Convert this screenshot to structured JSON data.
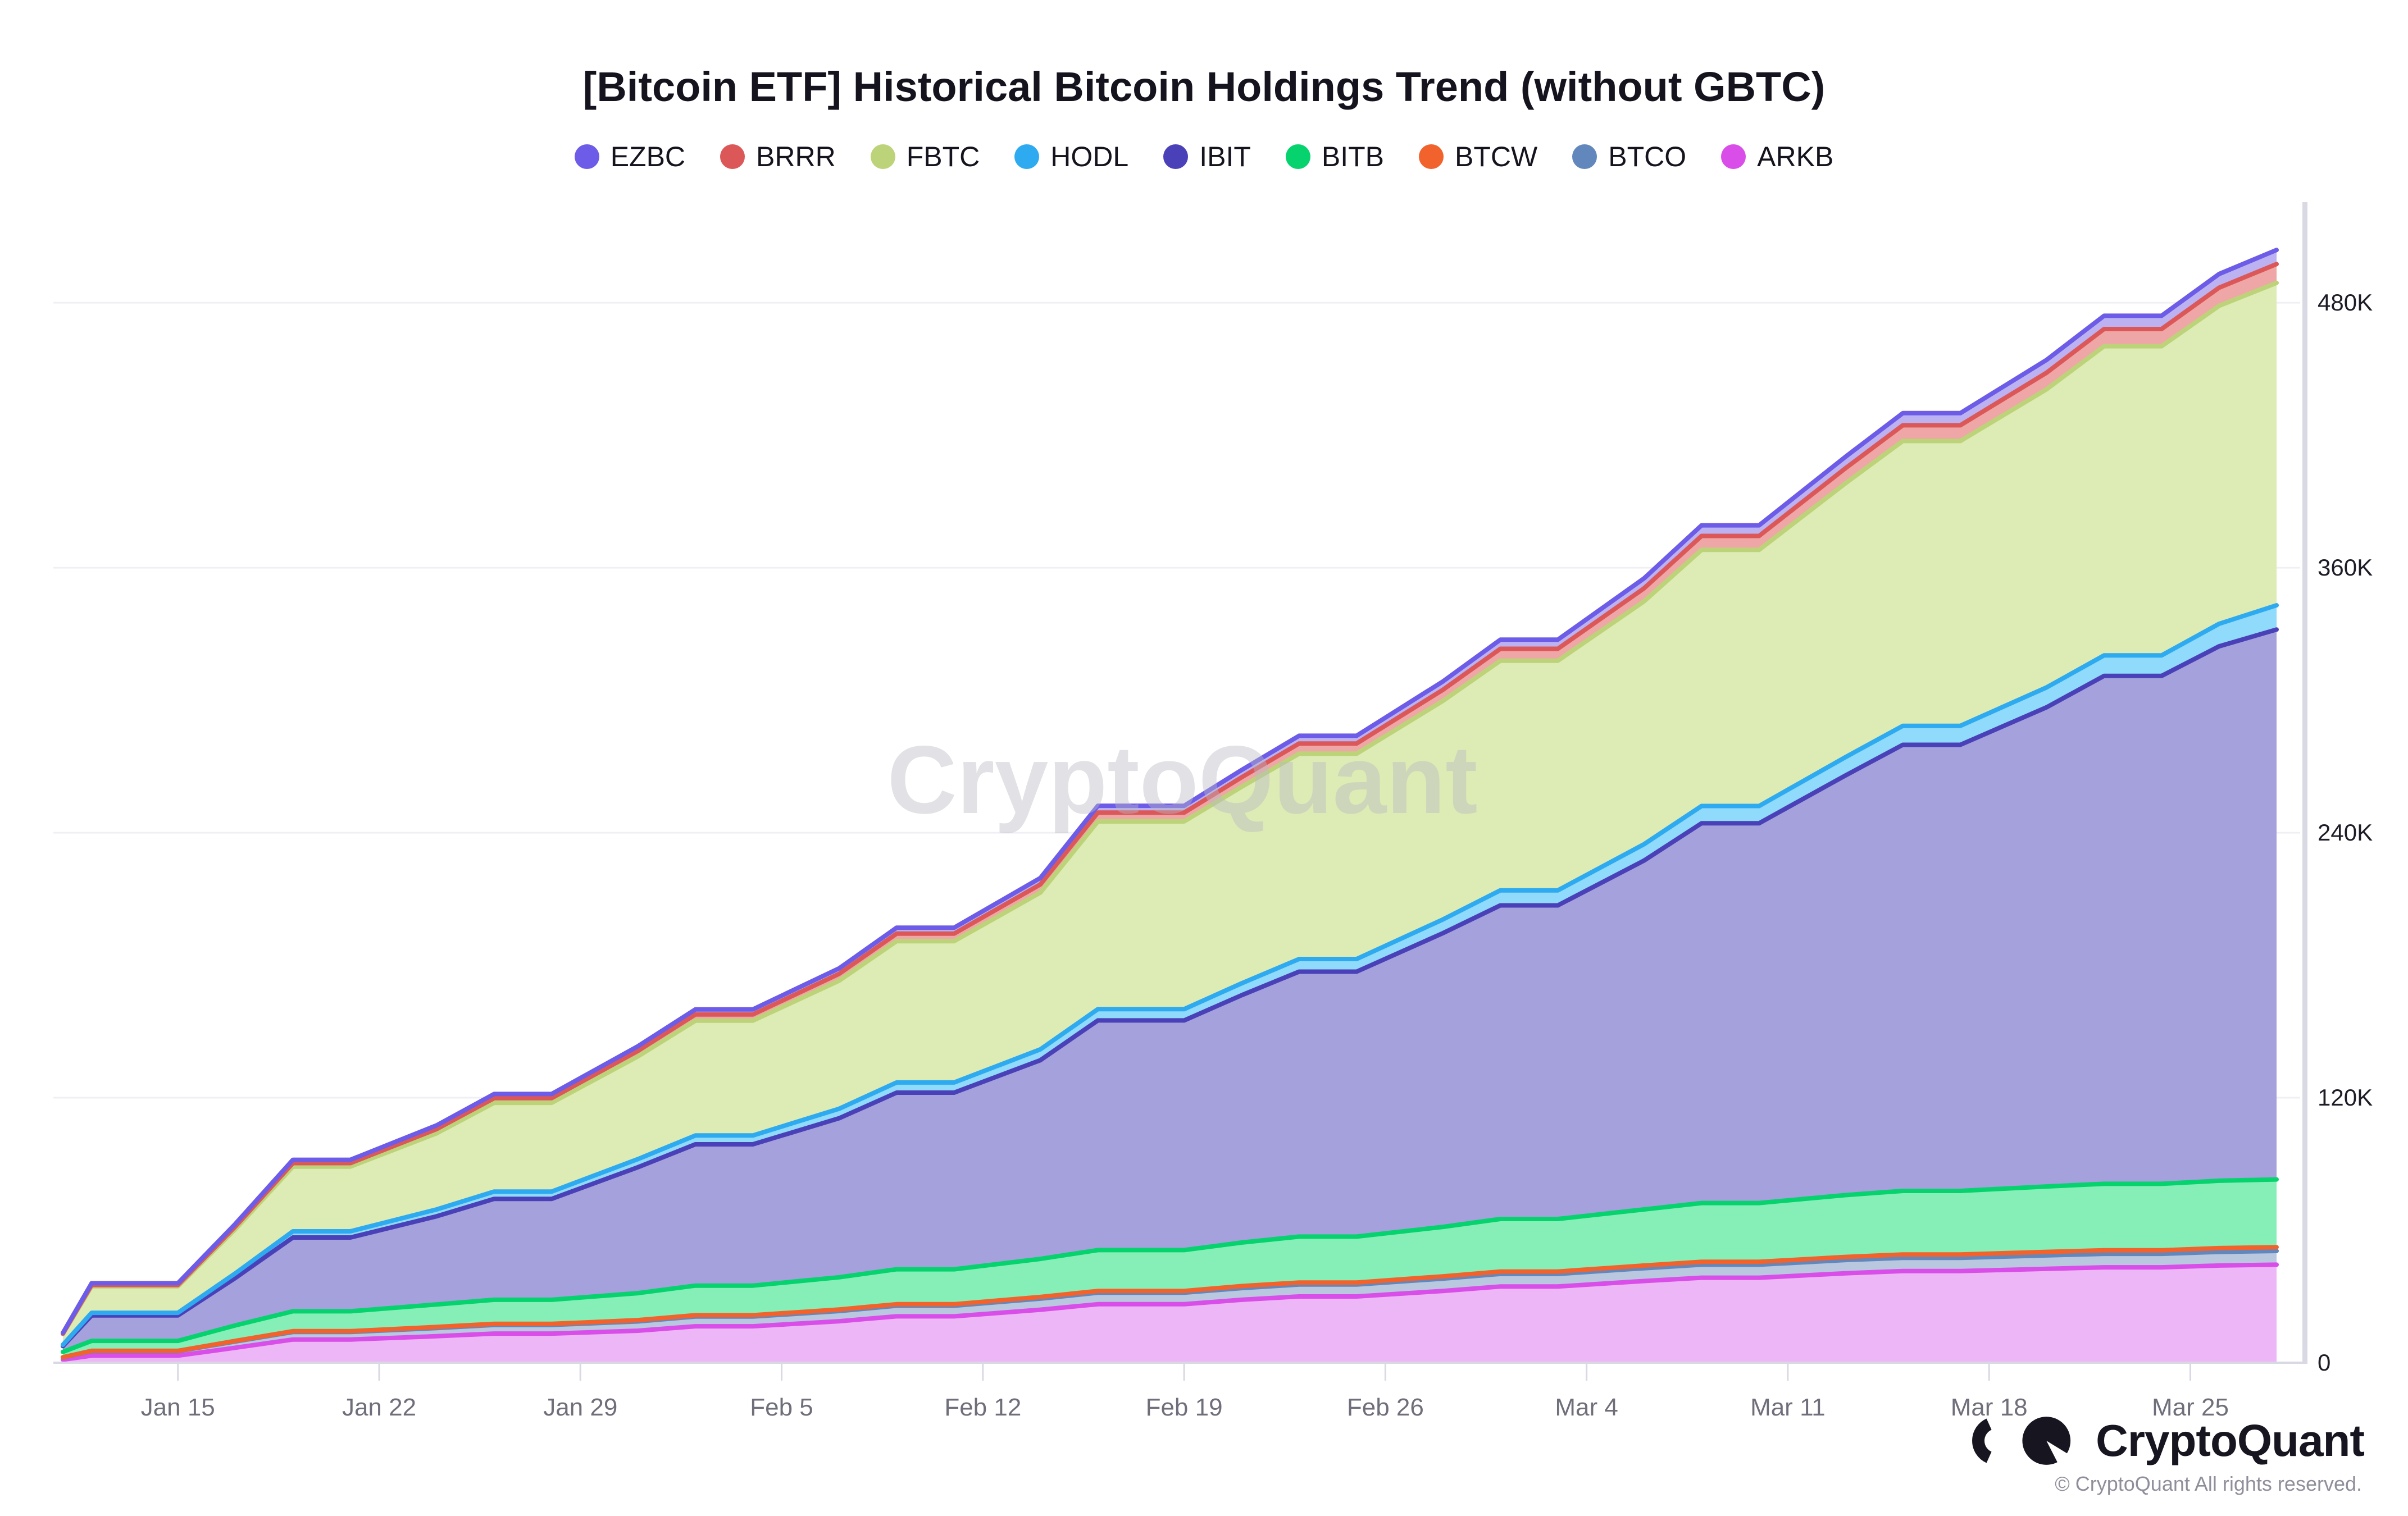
{
  "title": "[Bitcoin ETF] Historical Bitcoin Holdings Trend (without GBTC)",
  "watermark": "CryptoQuant",
  "footer": {
    "brand": "CryptoQuant",
    "copyright": "© CryptoQuant All rights reserved."
  },
  "axis_colors": {
    "grid": "#f0f0f4",
    "axis_line": "#d9d9e3",
    "x_label": "#6f6f7b",
    "y_label": "#1e1c26"
  },
  "chart_data": {
    "type": "area",
    "stacked": true,
    "title": "[Bitcoin ETF] Historical Bitcoin Holdings Trend (without GBTC)",
    "xlabel": "",
    "ylabel": "",
    "y_unit": "BTC (thousands shown as K)",
    "ylim_k": [
      0,
      520
    ],
    "grid": true,
    "legend_position": "top-center",
    "y_tick_labels": [
      "480K",
      "360K",
      "240K",
      "120K",
      "0"
    ],
    "y_tick_values_k": [
      480,
      360,
      240,
      120,
      0
    ],
    "x_tick_labels": [
      "Jan 15",
      "Jan 22",
      "Jan 29",
      "Feb 5",
      "Feb 12",
      "Feb 19",
      "Feb 26",
      "Mar 4",
      "Mar 11",
      "Mar 18",
      "Mar 25"
    ],
    "x_tick_day_offsets": [
      4,
      11,
      18,
      25,
      32,
      39,
      46,
      53,
      60,
      67,
      74
    ],
    "dates": [
      "Jan 11",
      "Jan 12",
      "Jan 15",
      "Jan 17",
      "Jan 19",
      "Jan 21",
      "Jan 24",
      "Jan 26",
      "Jan 28",
      "Jan 31",
      "Feb 2",
      "Feb 4",
      "Feb 7",
      "Feb 9",
      "Feb 11",
      "Feb 14",
      "Feb 16",
      "Feb 19",
      "Feb 21",
      "Feb 23",
      "Feb 25",
      "Feb 28",
      "Mar 1",
      "Mar 3",
      "Mar 6",
      "Mar 8",
      "Mar 10",
      "Mar 13",
      "Mar 15",
      "Mar 17",
      "Mar 20",
      "Mar 22",
      "Mar 24",
      "Mar 26",
      "Mar 28"
    ],
    "day_offsets": [
      0,
      1,
      4,
      6,
      8,
      10,
      13,
      15,
      17,
      20,
      22,
      24,
      27,
      29,
      31,
      34,
      36,
      39,
      41,
      43,
      45,
      48,
      50,
      52,
      55,
      57,
      59,
      62,
      64,
      66,
      69,
      71,
      73,
      75,
      77
    ],
    "stack_bottom_to_top": [
      "ARKB",
      "BTCO",
      "BTCW",
      "BITB",
      "IBIT",
      "HODL",
      "FBTC",
      "BRRR",
      "EZBC"
    ],
    "series": [
      {
        "name": "EZBC",
        "color": "#6C5CE7",
        "fill": "#BCB2F1",
        "values_k": [
          0.3,
          0.8,
          0.8,
          1.2,
          1.5,
          1.5,
          1.7,
          1.9,
          1.9,
          2.1,
          2.3,
          2.3,
          2.5,
          2.7,
          2.7,
          2.9,
          3.1,
          3.1,
          3.3,
          3.5,
          3.5,
          3.8,
          4.1,
          4.1,
          4.5,
          4.8,
          4.8,
          5.2,
          5.5,
          5.5,
          5.8,
          6.0,
          6.0,
          6.2,
          6.4
        ]
      },
      {
        "name": "BRRR",
        "color": "#DC5858",
        "fill": "#EFA6A6",
        "values_k": [
          0.2,
          0.6,
          0.6,
          1.2,
          1.6,
          1.6,
          1.9,
          2.1,
          2.1,
          2.5,
          2.8,
          2.8,
          3.1,
          3.4,
          3.4,
          3.7,
          4.0,
          4.0,
          4.3,
          4.6,
          4.6,
          5.0,
          5.4,
          5.4,
          5.9,
          6.3,
          6.3,
          6.8,
          7.1,
          7.1,
          7.5,
          7.8,
          7.8,
          8.2,
          8.5
        ]
      },
      {
        "name": "FBTC",
        "color": "#BDD379",
        "fill": "#DDEBB4",
        "values_k": [
          4.9,
          12.0,
          12.0,
          20.0,
          29.3,
          29.3,
          34.5,
          40.2,
          40.2,
          46.5,
          52.0,
          52.0,
          58.0,
          64.0,
          64.0,
          71.0,
          85.0,
          85.0,
          89.0,
          93.0,
          93.0,
          99.0,
          104.0,
          104.0,
          110.0,
          116.0,
          116.0,
          124.0,
          129.0,
          129.0,
          135.0,
          140.0,
          140.0,
          144.0,
          146.0
        ]
      },
      {
        "name": "HODL",
        "color": "#2EAAF0",
        "fill": "#90DAFB",
        "values_k": [
          0.6,
          1.2,
          1.2,
          2.1,
          2.8,
          2.8,
          3.1,
          3.3,
          3.3,
          3.7,
          4.0,
          4.0,
          4.3,
          4.6,
          4.6,
          4.9,
          5.1,
          5.1,
          5.4,
          5.7,
          5.7,
          6.2,
          6.8,
          6.8,
          7.4,
          7.8,
          7.8,
          8.3,
          8.6,
          8.6,
          9.0,
          9.3,
          9.3,
          10.2,
          11.0
        ]
      },
      {
        "name": "IBIT",
        "color": "#4A41B8",
        "fill": "#A5A1DC",
        "values_k": [
          2.6,
          11.5,
          11.5,
          21.5,
          33.4,
          33.4,
          39.9,
          45.7,
          45.7,
          57.0,
          64.0,
          64.0,
          72.0,
          80.0,
          80.0,
          90.0,
          104.0,
          104.0,
          112.0,
          120.0,
          120.0,
          133.0,
          142.0,
          142.0,
          158.0,
          172.0,
          172.0,
          190.0,
          202.0,
          202.0,
          217.0,
          230.0,
          230.0,
          242.0,
          249.0
        ]
      },
      {
        "name": "BITB",
        "color": "#06D26E",
        "fill": "#86EFB8",
        "values_k": [
          2.4,
          4.5,
          4.5,
          7.0,
          9.0,
          9.0,
          10.2,
          10.9,
          10.9,
          12.2,
          13.4,
          13.4,
          14.6,
          15.8,
          15.8,
          17.2,
          18.5,
          18.5,
          19.7,
          20.8,
          20.8,
          22.4,
          23.8,
          23.8,
          25.4,
          26.6,
          26.6,
          28.0,
          28.8,
          28.8,
          29.6,
          30.1,
          30.1,
          30.5,
          30.7
        ]
      },
      {
        "name": "BTCW",
        "color": "#F2622D",
        "fill": "#F9BC9E",
        "values_k": [
          0.1,
          0.2,
          0.2,
          0.3,
          0.4,
          0.4,
          0.5,
          0.5,
          0.5,
          0.6,
          0.6,
          0.6,
          0.7,
          0.7,
          0.7,
          0.8,
          0.8,
          0.8,
          0.9,
          0.9,
          0.9,
          1.0,
          1.1,
          1.1,
          1.2,
          1.3,
          1.3,
          1.4,
          1.5,
          1.5,
          1.6,
          1.6,
          1.6,
          1.7,
          1.7
        ]
      },
      {
        "name": "BTCO",
        "color": "#6287BC",
        "fill": "#B9C7DF",
        "values_k": [
          1.0,
          2.0,
          2.0,
          2.8,
          3.4,
          3.4,
          3.7,
          3.9,
          3.9,
          4.2,
          4.4,
          4.4,
          4.6,
          4.8,
          4.8,
          5.0,
          5.2,
          5.2,
          5.3,
          5.4,
          5.4,
          5.6,
          5.7,
          5.7,
          5.8,
          5.9,
          5.9,
          6.0,
          6.0,
          6.0,
          6.1,
          6.1,
          6.1,
          6.2,
          6.2
        ]
      },
      {
        "name": "ARKB",
        "color": "#D94DE8",
        "fill": "#EDB6F6",
        "values_k": [
          1.4,
          3.2,
          3.2,
          6.8,
          10.5,
          10.5,
          12.0,
          13.2,
          13.2,
          14.5,
          16.5,
          16.5,
          18.8,
          21.0,
          21.0,
          24.0,
          26.5,
          26.5,
          28.5,
          30.0,
          30.0,
          32.5,
          34.5,
          34.5,
          37.0,
          38.5,
          38.5,
          40.5,
          41.5,
          41.5,
          42.5,
          43.2,
          43.2,
          44.0,
          44.4
        ]
      }
    ]
  }
}
